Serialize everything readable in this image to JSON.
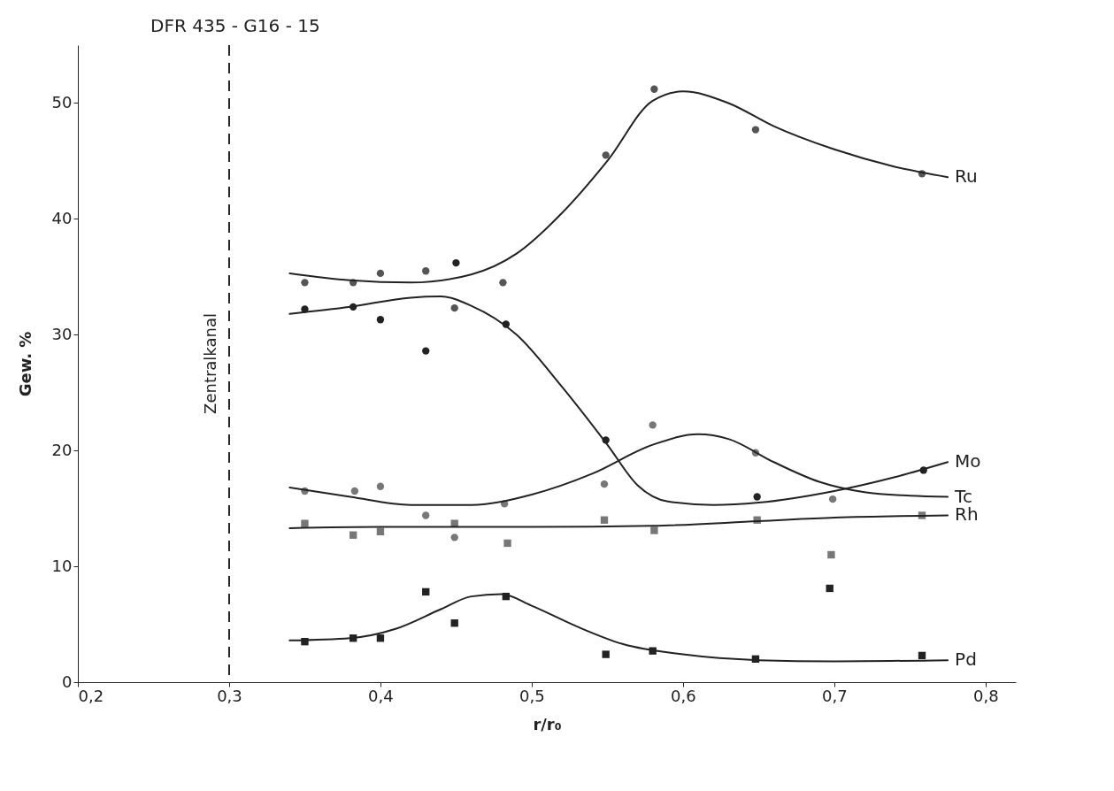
{
  "chart_data": {
    "type": "scatter",
    "title": "DFR 435 - G16 - 15",
    "xlabel": "r/r₀",
    "ylabel": "Gew. %",
    "xlim": [
      0.2,
      0.82
    ],
    "ylim": [
      0,
      55
    ],
    "xticks": [
      {
        "value": 0.2,
        "label": "0,2"
      },
      {
        "value": 0.3,
        "label": "0,3"
      },
      {
        "value": 0.4,
        "label": "0,4"
      },
      {
        "value": 0.5,
        "label": "0,5"
      },
      {
        "value": 0.6,
        "label": "0,6"
      },
      {
        "value": 0.7,
        "label": "0,7"
      },
      {
        "value": 0.8,
        "label": "0,8"
      }
    ],
    "yticks": [
      0,
      10,
      20,
      30,
      40,
      50
    ],
    "grid": false,
    "ref_lines": [
      {
        "axis": "x",
        "value": 0.3,
        "label": "Zentralkanal",
        "line_style": "dashed"
      }
    ],
    "series": [
      {
        "marker": "circle",
        "color": "#555555",
        "x": [
          0.35,
          0.382,
          0.4,
          0.43,
          0.449,
          0.481,
          0.549,
          0.581,
          0.648,
          0.758
        ],
        "values": [
          34.5,
          34.5,
          35.3,
          35.5,
          32.3,
          34.5,
          45.5,
          51.2,
          47.7,
          43.9
        ]
      },
      {
        "marker": "circle",
        "color": "#222222",
        "x": [
          0.35,
          0.382,
          0.4,
          0.43,
          0.45,
          0.483,
          0.549,
          0.649,
          0.759
        ],
        "values": [
          32.2,
          32.4,
          31.3,
          28.6,
          36.2,
          30.9,
          20.9,
          16.0,
          18.3
        ]
      },
      {
        "marker": "circle",
        "color": "#777777",
        "x": [
          0.35,
          0.383,
          0.4,
          0.43,
          0.449,
          0.482,
          0.548,
          0.58,
          0.648,
          0.699
        ],
        "values": [
          16.5,
          16.5,
          16.9,
          14.4,
          12.5,
          15.4,
          17.1,
          22.2,
          19.8,
          15.8
        ]
      },
      {
        "marker": "square",
        "color": "#777777",
        "x": [
          0.35,
          0.382,
          0.4,
          0.449,
          0.484,
          0.548,
          0.581,
          0.649,
          0.698,
          0.758
        ],
        "values": [
          13.7,
          12.7,
          13.0,
          13.7,
          12.0,
          14.0,
          13.1,
          14.0,
          11.0,
          14.4
        ]
      },
      {
        "marker": "square",
        "color": "#222222",
        "x": [
          0.35,
          0.382,
          0.4,
          0.43,
          0.449,
          0.483,
          0.549,
          0.58,
          0.648,
          0.697,
          0.758
        ],
        "values": [
          3.5,
          3.8,
          3.8,
          7.8,
          5.1,
          7.4,
          2.4,
          2.7,
          2.0,
          8.1,
          2.3
        ]
      },
      {
        "type": "line",
        "name": "Ru",
        "color": "#222222",
        "x": [
          0.34,
          0.38,
          0.42,
          0.46,
          0.49,
          0.52,
          0.55,
          0.58,
          0.6,
          0.63,
          0.66,
          0.7,
          0.74,
          0.775
        ],
        "values": [
          35.3,
          34.7,
          34.5,
          35.2,
          37,
          40.5,
          45,
          50.2,
          51,
          50,
          48,
          46,
          44.5,
          43.6
        ]
      },
      {
        "type": "line",
        "name": "Mo",
        "color": "#222222",
        "x": [
          0.34,
          0.38,
          0.42,
          0.44,
          0.46,
          0.49,
          0.52,
          0.55,
          0.57,
          0.59,
          0.62,
          0.65,
          0.7,
          0.74,
          0.775
        ],
        "values": [
          31.8,
          32.4,
          33.2,
          33.3,
          32.5,
          30,
          25.5,
          20.5,
          17,
          15.6,
          15.3,
          15.5,
          16.5,
          17.7,
          19
        ]
      },
      {
        "type": "line",
        "name": "Tc",
        "color": "#222222",
        "x": [
          0.34,
          0.38,
          0.42,
          0.46,
          0.5,
          0.54,
          0.58,
          0.61,
          0.63,
          0.66,
          0.69,
          0.72,
          0.75,
          0.775
        ],
        "values": [
          16.8,
          16,
          15.3,
          15.3,
          16.2,
          18,
          20.5,
          21.4,
          21,
          19,
          17.3,
          16.4,
          16.1,
          16
        ]
      },
      {
        "type": "line",
        "name": "Rh",
        "color": "#222222",
        "x": [
          0.34,
          0.4,
          0.5,
          0.58,
          0.65,
          0.7,
          0.775
        ],
        "values": [
          13.3,
          13.4,
          13.4,
          13.5,
          13.9,
          14.2,
          14.4
        ]
      },
      {
        "type": "line",
        "name": "Pd",
        "color": "#222222",
        "x": [
          0.34,
          0.38,
          0.41,
          0.44,
          0.46,
          0.48,
          0.5,
          0.53,
          0.56,
          0.6,
          0.65,
          0.7,
          0.775
        ],
        "values": [
          3.6,
          3.8,
          4.6,
          6.3,
          7.4,
          7.6,
          6.6,
          4.8,
          3.3,
          2.4,
          1.9,
          1.8,
          1.9
        ]
      }
    ]
  }
}
